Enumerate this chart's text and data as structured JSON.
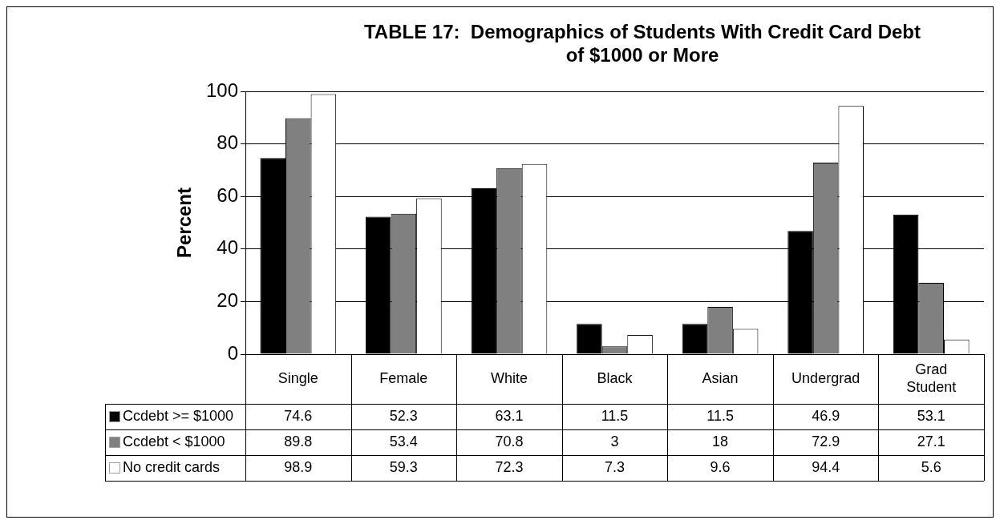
{
  "chart_data": {
    "type": "bar",
    "title": "TABLE 17:  Demographics of Students With Credit Card Debt of $1000 or More",
    "ylabel": "Percent",
    "categories": [
      "Single",
      "Female",
      "White",
      "Black",
      "Asian",
      "Undergrad",
      "Grad Student"
    ],
    "series": [
      {
        "name": "Ccdebt >= $1000",
        "color": "#000000",
        "values": [
          74.6,
          52.3,
          63.1,
          11.5,
          11.5,
          46.9,
          53.1
        ]
      },
      {
        "name": "Ccdebt < $1000",
        "color": "#808080",
        "values": [
          89.8,
          53.4,
          70.8,
          3,
          18,
          72.9,
          27.1
        ]
      },
      {
        "name": "No credit cards",
        "color": "#ffffff",
        "values": [
          98.9,
          59.3,
          72.3,
          7.3,
          9.6,
          94.4,
          5.6
        ]
      }
    ],
    "ylim": [
      0,
      100
    ],
    "yticks": [
      0,
      20,
      40,
      60,
      80,
      100
    ],
    "grid": "y",
    "legend": "bottom left",
    "data_labels": true
  }
}
